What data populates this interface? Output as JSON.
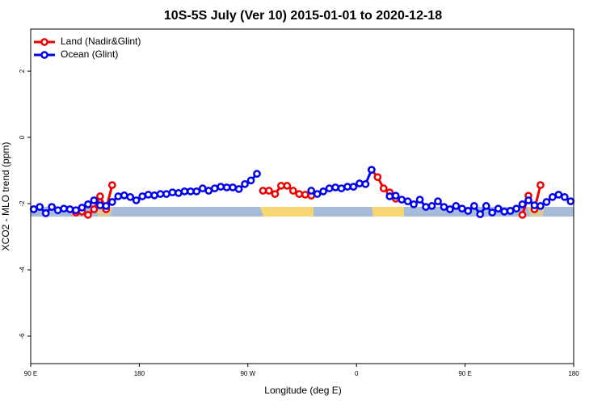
{
  "chart_data": {
    "type": "line",
    "title": "10S-5S July (Ver 10)   2015-01-01 to 2020-12-18",
    "xlabel": "Longitude (deg E)",
    "ylabel": "XCO2 - MLO trend (ppm)",
    "x": [
      92.5,
      97.5,
      102.5,
      107.5,
      112.5,
      117.5,
      122.5,
      127.5,
      132.5,
      137.5,
      142.5,
      147.5,
      152.5,
      157.5,
      162.5,
      167.5,
      172.5,
      177.5,
      182.5,
      187.5,
      192.5,
      197.5,
      202.5,
      207.5,
      212.5,
      217.5,
      222.5,
      227.5,
      232.5,
      237.5,
      242.5,
      247.5,
      252.5,
      257.5,
      262.5,
      267.5,
      272.5,
      277.5,
      282.5,
      287.5,
      292.5,
      297.5,
      302.5,
      307.5,
      312.5,
      317.5,
      322.5,
      327.5,
      332.5,
      337.5,
      342.5,
      347.5,
      352.5,
      357.5,
      362.5,
      367.5,
      372.5,
      377.5,
      382.5,
      387.5,
      392.5,
      397.5,
      402.5,
      407.5,
      412.5,
      417.5,
      422.5,
      427.5,
      432.5,
      437.5,
      442.5,
      447.5,
      452.5,
      457.5,
      462.5,
      467.5,
      472.5,
      477.5,
      482.5,
      487.5,
      492.5,
      497.5,
      502.5,
      507.5,
      512.5,
      517.5,
      522.5,
      527.5,
      532.5,
      537.5
    ],
    "series": [
      {
        "name": "Land (Nadir&Glint)",
        "color": "#ee0000",
        "values": [
          null,
          null,
          null,
          null,
          null,
          null,
          null,
          -2.27,
          -2.24,
          -2.34,
          -2.17,
          -1.78,
          -2.17,
          -1.44,
          null,
          null,
          null,
          null,
          null,
          null,
          null,
          null,
          null,
          null,
          null,
          null,
          null,
          null,
          null,
          null,
          null,
          null,
          null,
          null,
          null,
          null,
          null,
          null,
          -1.61,
          -1.61,
          -1.71,
          -1.46,
          -1.46,
          -1.61,
          -1.71,
          -1.73,
          -1.76,
          null,
          null,
          null,
          null,
          null,
          null,
          null,
          null,
          null,
          -0.98,
          -1.2,
          -1.54,
          -1.66,
          -1.85,
          null,
          null,
          null,
          null,
          null,
          null,
          null,
          null,
          null,
          null,
          null,
          null,
          null,
          null,
          null,
          null,
          null,
          null,
          null,
          null,
          -2.34,
          -1.76,
          -2.17,
          -1.44,
          null,
          null,
          null,
          null,
          null
        ]
      },
      {
        "name": "Ocean (Glint)",
        "color": "#0000ee",
        "values": [
          -2.17,
          -2.1,
          -2.29,
          -2.1,
          -2.2,
          -2.15,
          -2.17,
          -2.2,
          -2.12,
          -2.02,
          -1.9,
          -2.05,
          -2.07,
          -1.95,
          -1.78,
          -1.75,
          -1.8,
          -1.9,
          -1.78,
          -1.73,
          -1.75,
          -1.71,
          -1.71,
          -1.66,
          -1.68,
          -1.63,
          -1.63,
          -1.63,
          -1.54,
          -1.61,
          -1.54,
          -1.49,
          -1.51,
          -1.51,
          -1.56,
          -1.41,
          -1.3,
          -1.1,
          null,
          null,
          null,
          null,
          null,
          null,
          null,
          null,
          -1.61,
          -1.71,
          -1.63,
          -1.54,
          -1.51,
          -1.54,
          -1.49,
          -1.49,
          -1.39,
          -1.41,
          -0.98,
          null,
          null,
          -1.78,
          -1.76,
          -1.88,
          -1.93,
          -2.02,
          -1.88,
          -2.1,
          -2.07,
          -1.93,
          -2.1,
          -2.17,
          -2.07,
          -2.15,
          -2.22,
          -2.07,
          -2.32,
          -2.07,
          -2.27,
          -2.15,
          -2.24,
          -2.22,
          -2.15,
          -2.02,
          -1.9,
          -2.05,
          -2.07,
          -1.95,
          -1.8,
          -1.73,
          -1.8,
          -1.93
        ]
      }
    ],
    "xlim": [
      90,
      540
    ],
    "xticks": [
      {
        "value": 90,
        "label": "90 E"
      },
      180,
      {
        "value": 270,
        "label": "90 W"
      },
      {
        "value": 360,
        "label": "0"
      },
      {
        "value": 450,
        "label": "90 E"
      },
      {
        "value": 540,
        "label": "180"
      }
    ],
    "ylim": [
      -6.83,
      3.27
    ],
    "yticks": [
      2,
      0,
      -2,
      -4,
      -6
    ],
    "legend": "upper left"
  }
}
